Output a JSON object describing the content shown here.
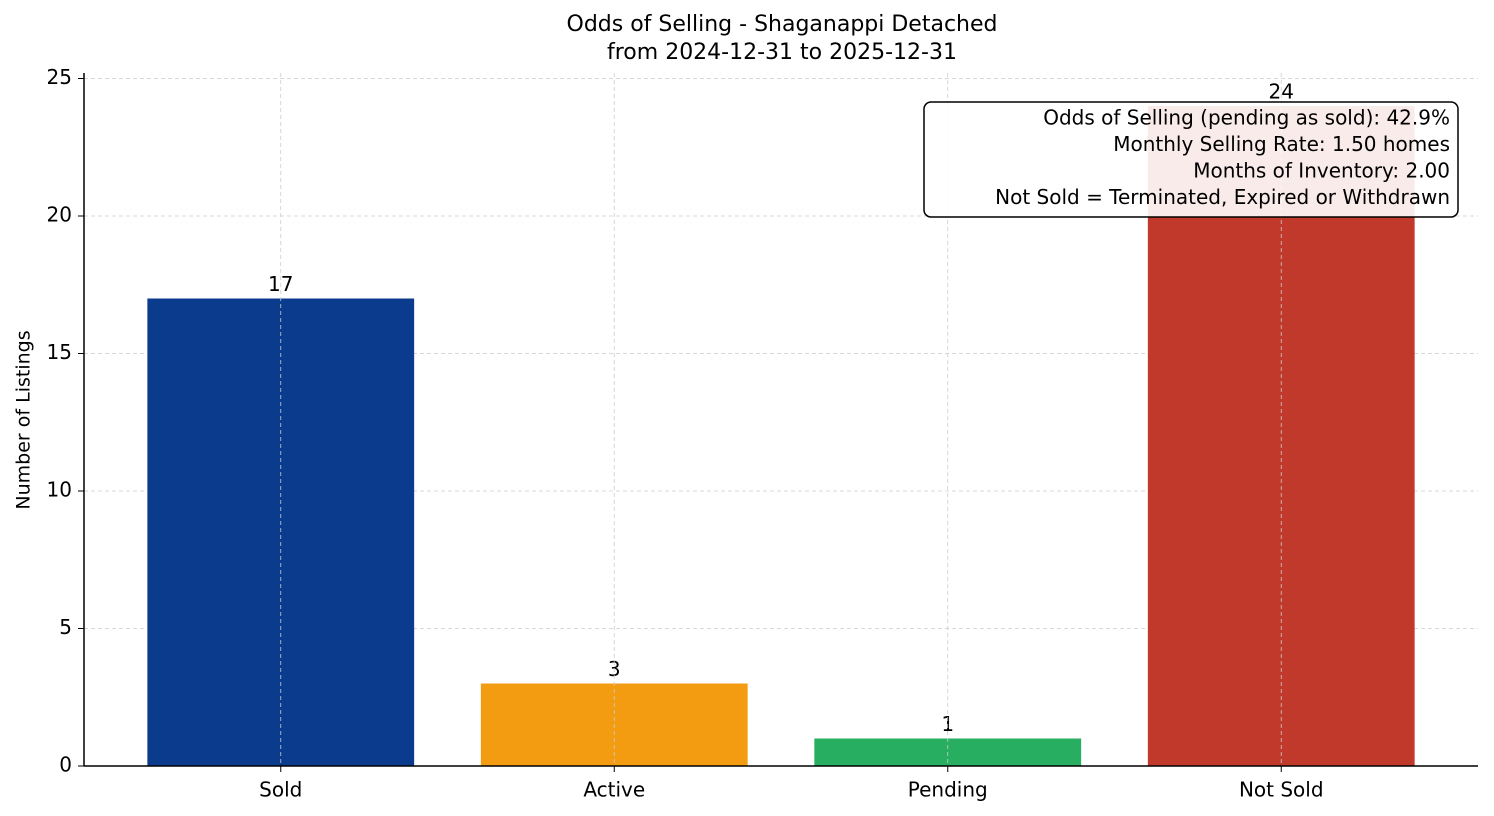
{
  "chart_data": {
    "type": "bar",
    "title": "Odds of Selling - Shaganappi Detached",
    "subtitle": "from 2024-12-31 to 2025-12-31",
    "ylabel": "Number of Listings",
    "categories": [
      "Sold",
      "Active",
      "Pending",
      "Not Sold"
    ],
    "values": [
      17,
      3,
      1,
      24
    ],
    "colors": [
      "#0b3b8c",
      "#f39c12",
      "#27ae60",
      "#c0392b"
    ],
    "ylim": [
      0,
      25.2
    ],
    "yticks": [
      0,
      5,
      10,
      15,
      20,
      25
    ],
    "grid": true,
    "annotation": [
      "Odds of Selling (pending as sold): 42.9%",
      "Monthly Selling Rate: 1.50 homes",
      "Months of Inventory: 2.00",
      "Not Sold = Terminated, Expired or Withdrawn"
    ]
  }
}
